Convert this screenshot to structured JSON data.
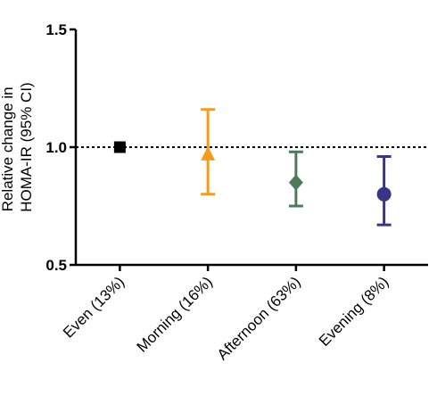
{
  "chart_data": {
    "type": "errorbar",
    "y_label": [
      "Relative change in",
      "HOMA-IR (95% CI)"
    ],
    "categories": [
      "Even (13%)",
      "Morning (16%)",
      "Afternoon (63%)",
      "Evening (8%)"
    ],
    "values": [
      1.0,
      0.97,
      0.85,
      0.8
    ],
    "lower": [
      null,
      0.8,
      0.75,
      0.67
    ],
    "upper": [
      null,
      1.16,
      0.98,
      0.96
    ],
    "colors": [
      "#000000",
      "#f39c1e",
      "#4f7a5a",
      "#3b3486"
    ],
    "markers": [
      "square",
      "triangle",
      "diamond",
      "circle"
    ],
    "reference_line": 1.0,
    "ylim": [
      0.5,
      1.5
    ],
    "yticks": [
      0.5,
      {
        "value": 1.0,
        "label": "1.0"
      },
      1.5
    ]
  }
}
